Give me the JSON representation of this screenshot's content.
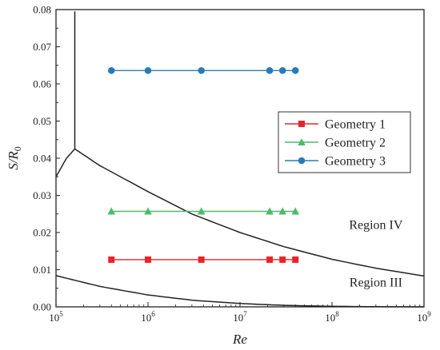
{
  "chart_data": {
    "type": "line",
    "xscale": "log",
    "xlabel": "Re",
    "ylabel": "S/R0",
    "ylabel_parts": {
      "main": "S/R",
      "sub": "0"
    },
    "xlim": [
      100000,
      1000000000
    ],
    "ylim": [
      0,
      0.08
    ],
    "grid": false,
    "legend_position": "right",
    "xtick_labels": [
      {
        "value": 100000,
        "base": "10",
        "exp": "5"
      },
      {
        "value": 1000000,
        "base": "10",
        "exp": "6"
      },
      {
        "value": 10000000,
        "base": "10",
        "exp": "7"
      },
      {
        "value": 100000000,
        "base": "10",
        "exp": "8"
      },
      {
        "value": 1000000000,
        "base": "10",
        "exp": "9"
      }
    ],
    "yticks": [
      {
        "value": 0,
        "label": "0.00"
      },
      {
        "value": 0.01,
        "label": "0.01"
      },
      {
        "value": 0.02,
        "label": "0.02"
      },
      {
        "value": 0.03,
        "label": "0.03"
      },
      {
        "value": 0.04,
        "label": "0.04"
      },
      {
        "value": 0.05,
        "label": "0.05"
      },
      {
        "value": 0.06,
        "label": "0.06"
      },
      {
        "value": 0.07,
        "label": "0.07"
      },
      {
        "value": 0.08,
        "label": "0.08"
      }
    ],
    "series": [
      {
        "name": "Geometry 1",
        "color": "#e8242b",
        "marker": "square",
        "x": [
          400000,
          1000000,
          3800000,
          21000000,
          29000000,
          40000000
        ],
        "y": [
          0.0127,
          0.0127,
          0.0127,
          0.0127,
          0.0127,
          0.0127
        ]
      },
      {
        "name": "Geometry 2",
        "color": "#4fba6a",
        "marker": "triangle",
        "x": [
          400000,
          1000000,
          3800000,
          21000000,
          29000000,
          40000000
        ],
        "y": [
          0.0257,
          0.0257,
          0.0257,
          0.0257,
          0.0257,
          0.0257
        ]
      },
      {
        "name": "Geometry 3",
        "color": "#2a7ab8",
        "marker": "circle",
        "x": [
          400000,
          1000000,
          3800000,
          21000000,
          29000000,
          40000000
        ],
        "y": [
          0.0636,
          0.0636,
          0.0636,
          0.0636,
          0.0636,
          0.0636
        ]
      }
    ],
    "boundaries": [
      {
        "color": "#222222",
        "x": [
          100000,
          130000,
          160000
        ],
        "y": [
          0.035,
          0.04,
          0.0425
        ]
      },
      {
        "color": "#222222",
        "x": [
          160000,
          160000
        ],
        "y": [
          0.0425,
          0.0795
        ]
      },
      {
        "color": "#222222",
        "x": [
          160000,
          300000,
          1000000,
          3000000,
          10000000,
          30000000,
          100000000,
          300000000,
          1000000000
        ],
        "y": [
          0.0425,
          0.038,
          0.031,
          0.025,
          0.02,
          0.0162,
          0.0128,
          0.0104,
          0.0083
        ]
      },
      {
        "color": "#222222",
        "x": [
          100000,
          300000,
          1000000,
          3000000,
          10000000,
          30000000,
          100000000,
          300000000,
          1000000000
        ],
        "y": [
          0.0084,
          0.0055,
          0.0032,
          0.0018,
          0.0009,
          0.0004,
          0.00015,
          4e-05,
          0.0
        ]
      }
    ],
    "annotations": [
      {
        "text": "Region IV",
        "x": 300000000,
        "y": 0.021
      },
      {
        "text": "Region III",
        "x": 300000000,
        "y": 0.0055
      }
    ]
  }
}
